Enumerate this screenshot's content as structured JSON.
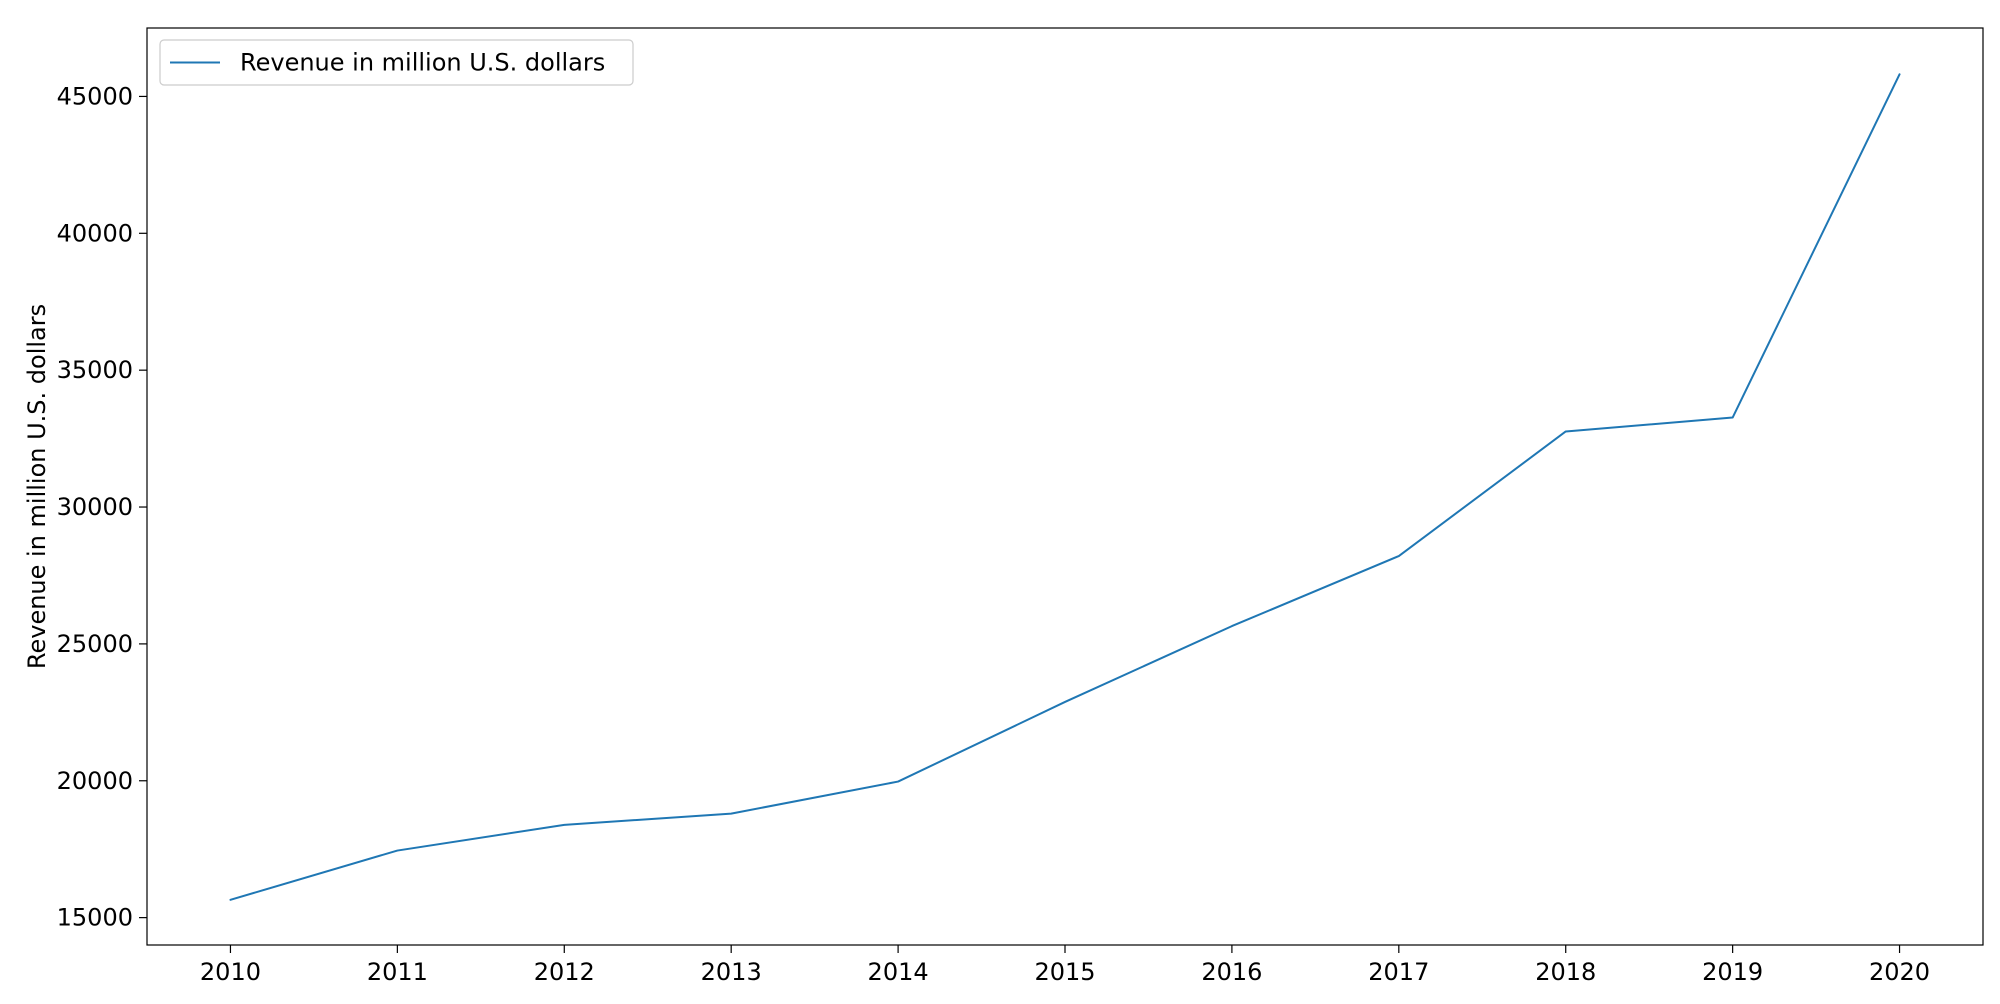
{
  "chart_data": {
    "type": "line",
    "x": [
      2010,
      2011,
      2012,
      2013,
      2014,
      2015,
      2016,
      2017,
      2018,
      2019,
      2020
    ],
    "series": [
      {
        "name": "Revenue in million U.S. dollars",
        "color": "#1f77b4",
        "values": [
          15650,
          17450,
          18390,
          18800,
          19970,
          22880,
          25650,
          28210,
          32760,
          33270,
          45810
        ]
      }
    ],
    "xlabel": "",
    "ylabel": "Revenue in million U.S. dollars",
    "xlim": [
      2009.5,
      2020.5
    ],
    "ylim": [
      14000,
      47500
    ],
    "xticks": [
      2010,
      2011,
      2012,
      2013,
      2014,
      2015,
      2016,
      2017,
      2018,
      2019,
      2020
    ],
    "yticks": [
      15000,
      20000,
      25000,
      30000,
      35000,
      40000,
      45000
    ],
    "grid": false,
    "legend_position": "top-left"
  }
}
